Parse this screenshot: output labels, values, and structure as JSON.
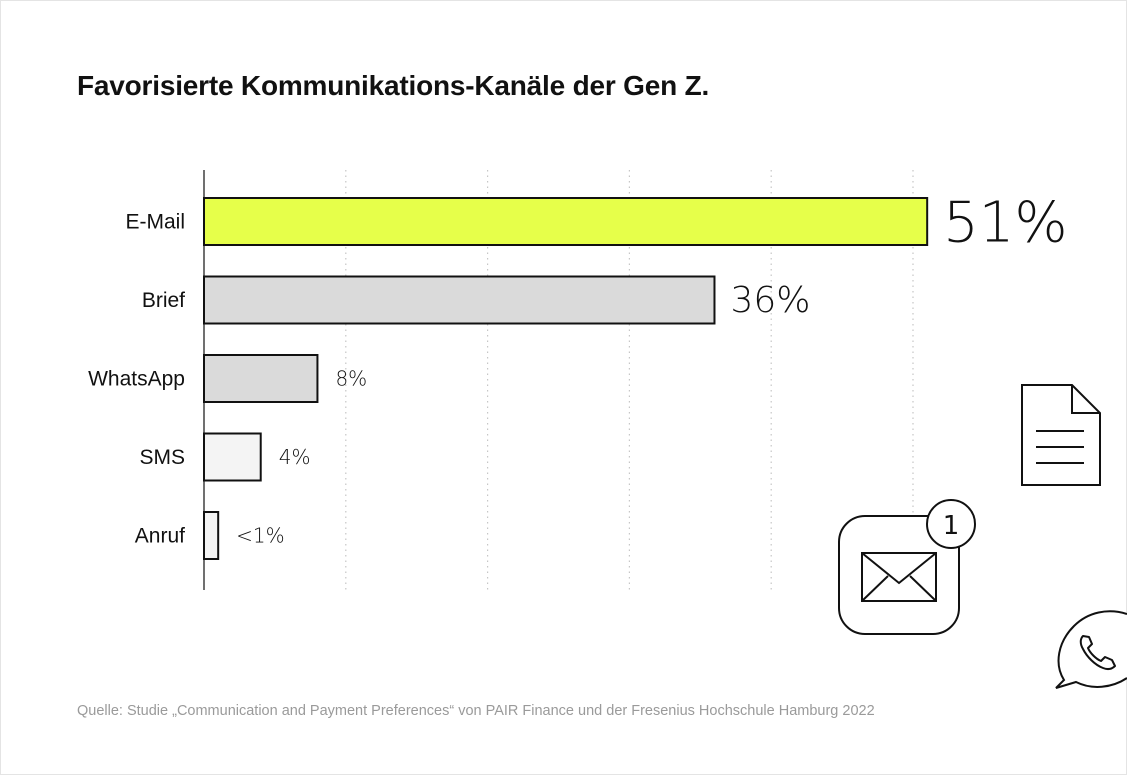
{
  "title": "Favorisierte Kommunikations-Kanäle der Gen Z.",
  "source": "Quelle: Studie „Communication and Payment Preferences“ von PAIR Finance und der Fresenius Hochschule Hamburg 2022",
  "chart_data": {
    "type": "bar",
    "orientation": "horizontal",
    "title": "Favorisierte Kommunikations-Kanäle der Gen Z.",
    "xlabel": "",
    "ylabel": "",
    "xlim": [
      0,
      50
    ],
    "grid": true,
    "categories": [
      "E-Mail",
      "Brief",
      "WhatsApp",
      "SMS",
      "Anruf"
    ],
    "values": [
      51,
      36,
      8,
      4,
      1
    ],
    "value_labels": [
      "51%",
      "36%",
      "8%",
      "4%",
      "<1%"
    ],
    "bar_colors": [
      "#e6ff4a",
      "#dadada",
      "#dadada",
      "#f4f4f4",
      "#f4f4f4"
    ]
  },
  "icons": {
    "document": "document-icon",
    "mail": "mail-icon",
    "phone": "phone-chat-icon",
    "badge_count": "1"
  }
}
